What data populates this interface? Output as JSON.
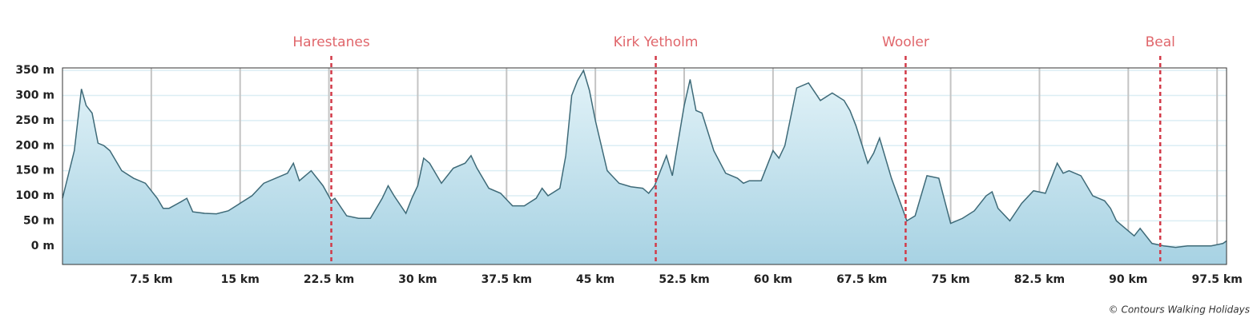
{
  "chart_data": {
    "type": "area",
    "x": [
      0,
      1,
      1.6,
      2,
      2.5,
      3,
      3.5,
      4,
      5,
      6,
      7,
      8,
      8.5,
      9,
      10,
      10.5,
      11,
      12,
      13,
      14,
      15,
      16,
      17,
      18,
      19,
      19.5,
      20,
      21,
      22,
      22.7,
      23,
      24,
      25,
      26,
      27,
      27.5,
      28,
      29,
      29.5,
      30,
      30.5,
      31,
      32,
      33,
      34,
      34.5,
      35,
      36,
      37,
      38,
      39,
      40,
      40.5,
      41,
      42,
      42.5,
      43,
      43.5,
      44,
      44.5,
      45,
      46,
      47,
      48,
      49,
      49.5,
      50,
      50.5,
      51,
      51.5,
      52,
      52.5,
      53,
      53.5,
      54,
      55,
      56,
      57,
      57.5,
      58,
      59,
      60,
      60.5,
      61,
      62,
      63,
      64,
      65,
      66,
      66.5,
      67,
      68,
      68.5,
      69,
      70,
      71,
      71.3,
      72,
      73,
      74,
      75,
      76,
      77,
      78,
      78.5,
      79,
      80,
      81,
      82,
      83,
      83.5,
      84,
      84.5,
      85,
      86,
      87,
      88,
      88.5,
      89,
      90,
      90.5,
      91,
      92,
      93,
      94,
      95,
      96,
      97,
      98,
      98.3
    ],
    "values": [
      95,
      190,
      313,
      280,
      265,
      205,
      200,
      190,
      150,
      135,
      125,
      95,
      75,
      75,
      88,
      95,
      68,
      65,
      64,
      70,
      85,
      100,
      125,
      135,
      145,
      165,
      130,
      150,
      120,
      90,
      95,
      60,
      55,
      55,
      95,
      120,
      100,
      65,
      95,
      120,
      175,
      165,
      125,
      155,
      165,
      180,
      155,
      115,
      105,
      80,
      80,
      95,
      115,
      100,
      115,
      180,
      300,
      330,
      350,
      310,
      250,
      150,
      125,
      118,
      115,
      105,
      120,
      150,
      180,
      140,
      210,
      280,
      332,
      270,
      265,
      190,
      145,
      135,
      125,
      130,
      130,
      190,
      175,
      200,
      315,
      325,
      290,
      305,
      290,
      270,
      240,
      165,
      185,
      215,
      135,
      70,
      50,
      60,
      140,
      135,
      45,
      55,
      70,
      100,
      108,
      75,
      50,
      85,
      110,
      105,
      135,
      165,
      145,
      150,
      140,
      100,
      90,
      75,
      50,
      30,
      20,
      35,
      5,
      0,
      -3,
      0,
      0,
      0,
      5,
      10
    ],
    "color": "#3e6a78",
    "xlim": [
      0,
      98.3
    ],
    "ylim": [
      -37,
      355
    ],
    "xticks": [
      {
        "value": 7.5,
        "label": "7.5 km"
      },
      {
        "value": 15,
        "label": "15 km"
      },
      {
        "value": 22.5,
        "label": "22.5 km"
      },
      {
        "value": 30,
        "label": "30 km"
      },
      {
        "value": 37.5,
        "label": "37.5 km"
      },
      {
        "value": 45,
        "label": "45 km"
      },
      {
        "value": 52.5,
        "label": "52.5 km"
      },
      {
        "value": 60,
        "label": "60 km"
      },
      {
        "value": 67.5,
        "label": "67.5 km"
      },
      {
        "value": 75,
        "label": "75 km"
      },
      {
        "value": 82.5,
        "label": "82.5 km"
      },
      {
        "value": 90,
        "label": "90 km"
      },
      {
        "value": 97.5,
        "label": "97.5 km"
      }
    ],
    "yticks": [
      {
        "value": 0,
        "label": "0 m"
      },
      {
        "value": 50,
        "label": "50 m"
      },
      {
        "value": 100,
        "label": "100 m"
      },
      {
        "value": 150,
        "label": "150 m"
      },
      {
        "value": 200,
        "label": "200 m"
      },
      {
        "value": 250,
        "label": "250 m"
      },
      {
        "value": 300,
        "label": "300 m"
      },
      {
        "value": 350,
        "label": "350 m"
      }
    ],
    "grid": true,
    "markers": [
      {
        "label": "Harestanes",
        "x": 22.7
      },
      {
        "label": "Kirk Yetholm",
        "x": 50.1
      },
      {
        "label": "Wooler",
        "x": 71.2
      },
      {
        "label": "Beal",
        "x": 92.7
      }
    ],
    "marker_color": "#d23a48",
    "credit": "© Contours Walking Holidays"
  }
}
